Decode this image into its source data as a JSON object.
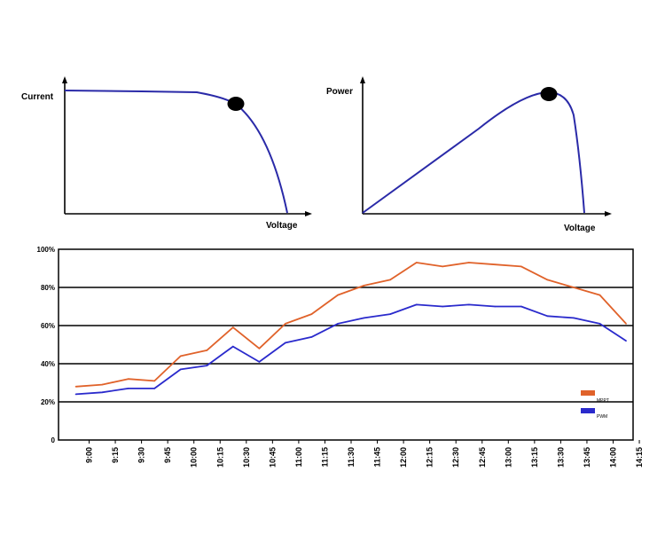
{
  "chart_data": [
    {
      "type": "line",
      "ylabel": "Current",
      "xlabel": "Voltage",
      "curve": "current-voltage",
      "marker": "max-power-point",
      "colors": {
        "curve": "#2a2aa8",
        "marker": "#000000",
        "axis": "#000000"
      }
    },
    {
      "type": "line",
      "ylabel": "Power",
      "xlabel": "Voltage",
      "curve": "power-voltage",
      "marker": "max-power-point",
      "colors": {
        "curve": "#2a2aa8",
        "marker": "#000000",
        "axis": "#000000"
      }
    },
    {
      "type": "line",
      "categories": [
        "9:00",
        "9:15",
        "9:30",
        "9:45",
        "10:00",
        "10:15",
        "10:30",
        "10:45",
        "11:00",
        "11:15",
        "11:30",
        "11:45",
        "12:00",
        "12:15",
        "12:30",
        "12:45",
        "13:00",
        "13:15",
        "13:30",
        "13:45",
        "14:00",
        "14:15"
      ],
      "series": [
        {
          "name": "MPPT",
          "color": "#e0622a",
          "values": [
            28,
            29,
            32,
            31,
            44,
            47,
            59,
            48,
            61,
            66,
            76,
            81,
            84,
            93,
            91,
            93,
            92,
            91,
            84,
            80,
            76,
            61
          ]
        },
        {
          "name": "PWM",
          "color": "#2a2acc",
          "values": [
            24,
            25,
            27,
            27,
            37,
            39,
            49,
            41,
            51,
            54,
            61,
            64,
            66,
            71,
            70,
            71,
            70,
            70,
            65,
            64,
            61,
            52
          ]
        }
      ],
      "yticks": [
        "0",
        "20%",
        "40%",
        "60%",
        "80%",
        "100%"
      ],
      "ylim": [
        0,
        100
      ],
      "grid": true,
      "legend_position": "lower-right"
    }
  ]
}
